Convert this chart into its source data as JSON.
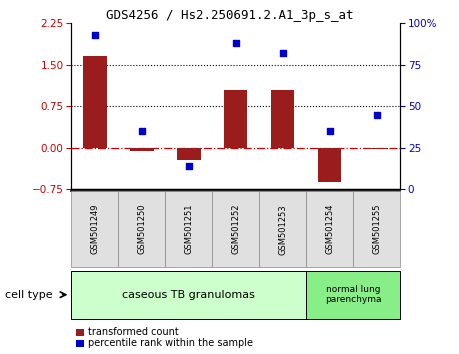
{
  "title": "GDS4256 / Hs2.250691.2.A1_3p_s_at",
  "samples": [
    "GSM501249",
    "GSM501250",
    "GSM501251",
    "GSM501252",
    "GSM501253",
    "GSM501254",
    "GSM501255"
  ],
  "transformed_count": [
    1.65,
    -0.05,
    -0.22,
    1.05,
    1.05,
    -0.62,
    -0.03
  ],
  "percentile_rank": [
    93,
    35,
    14,
    88,
    82,
    35,
    45
  ],
  "ylim_left": [
    -0.75,
    2.25
  ],
  "ylim_right": [
    0,
    100
  ],
  "yticks_left": [
    -0.75,
    0,
    0.75,
    1.5,
    2.25
  ],
  "yticks_right": [
    0,
    25,
    50,
    75,
    100
  ],
  "ytick_labels_right": [
    "0",
    "25",
    "50",
    "75",
    "100%"
  ],
  "hlines_dotted": [
    0.75,
    1.5
  ],
  "hline_zero": 0,
  "bar_color": "#9b1c1c",
  "scatter_color": "#0000cc",
  "group0_samples": [
    0,
    1,
    2,
    3,
    4
  ],
  "group0_label": "caseous TB granulomas",
  "group0_color": "#ccffcc",
  "group1_samples": [
    5,
    6
  ],
  "group1_label": "normal lung\nparenchyma",
  "group1_color": "#88ee88",
  "legend_bar_label": "transformed count",
  "legend_scatter_label": "percentile rank within the sample",
  "cell_type_label": "cell type",
  "figsize": [
    4.6,
    3.54
  ],
  "dpi": 100,
  "title_fontsize": 9,
  "tick_fontsize": 7.5,
  "sample_fontsize": 6,
  "group_fontsize": 8,
  "legend_fontsize": 7,
  "cell_type_fontsize": 8
}
